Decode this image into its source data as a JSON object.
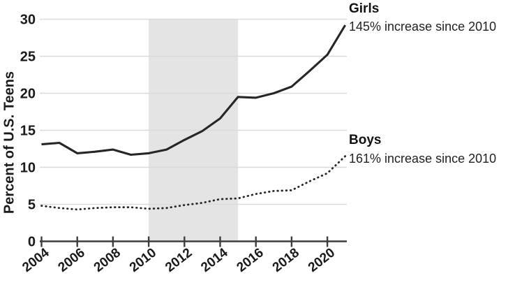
{
  "figure": {
    "y_axis_title": "Percent of U.S. Teens",
    "colors": {
      "line": "#262626",
      "grid": "#d9d9d9",
      "axis": "#3d3d3d",
      "shade": "#e4e4e4",
      "tick_text": "#1a1a1a"
    }
  },
  "chart_data": {
    "type": "line",
    "title": "",
    "xlabel": "",
    "ylabel": "Percent of U.S. Teens",
    "x": [
      2004,
      2005,
      2006,
      2007,
      2008,
      2009,
      2010,
      2011,
      2012,
      2013,
      2014,
      2015,
      2016,
      2017,
      2018,
      2019,
      2020,
      2021
    ],
    "series": [
      {
        "name": "Girls",
        "annotation": "145% increase since 2010",
        "style": "solid",
        "values": [
          13.1,
          13.3,
          11.9,
          12.1,
          12.4,
          11.7,
          11.9,
          12.4,
          13.7,
          14.9,
          16.6,
          19.5,
          19.4,
          20.0,
          20.9,
          23.0,
          25.2,
          29.2
        ]
      },
      {
        "name": "Boys",
        "annotation": "161% increase since 2010",
        "style": "dotted",
        "values": [
          4.8,
          4.5,
          4.3,
          4.5,
          4.6,
          4.6,
          4.4,
          4.5,
          4.9,
          5.2,
          5.7,
          5.8,
          6.4,
          6.8,
          6.9,
          8.1,
          9.2,
          11.5
        ]
      }
    ],
    "x_ticks": [
      2004,
      2006,
      2008,
      2010,
      2012,
      2014,
      2016,
      2018,
      2020
    ],
    "y_ticks": [
      0,
      5,
      10,
      15,
      20,
      25,
      30
    ],
    "xlim": [
      2004,
      2021.2
    ],
    "ylim": [
      0,
      30
    ],
    "grid": true,
    "shaded_region": {
      "from": 2010,
      "to": 2015
    },
    "legend_position": "right-annotations"
  }
}
